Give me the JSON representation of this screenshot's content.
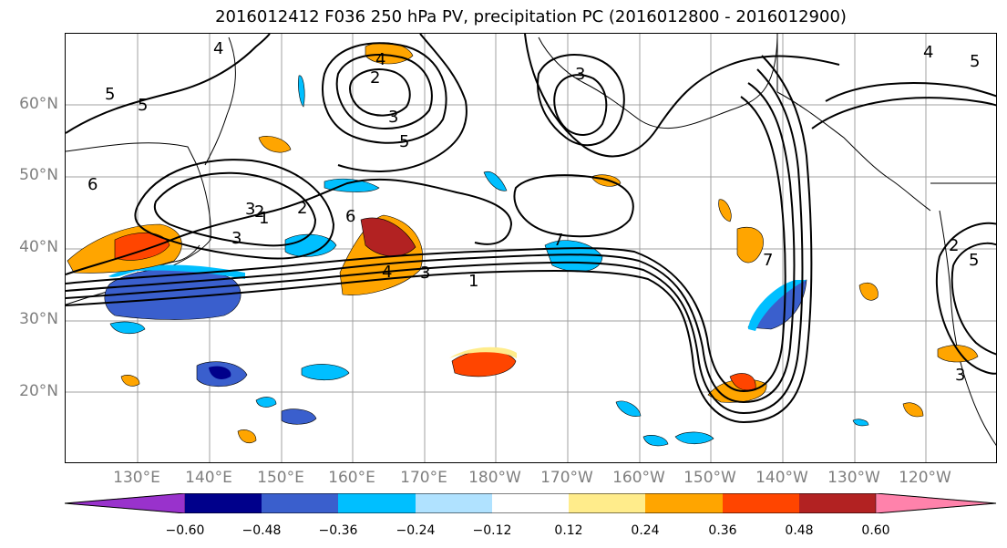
{
  "title": "2016012412 F036 250 hPa PV, precipitation PC (2016012800 - 2016012900)",
  "lat_labels": [
    "60°N",
    "50°N",
    "40°N",
    "30°N",
    "20°N"
  ],
  "lon_labels": [
    "130°E",
    "140°E",
    "150°E",
    "160°E",
    "170°E",
    "180°W",
    "170°W",
    "160°W",
    "150°W",
    "140°W",
    "130°W",
    "120°W"
  ],
  "contour_labels": [
    "4",
    "5",
    "5",
    "6",
    "2",
    "3",
    "1",
    "2",
    "3",
    "4",
    "2",
    "3",
    "5",
    "3",
    "7",
    "4",
    "3",
    "1",
    "6",
    "4",
    "5",
    "7",
    "2",
    "5",
    "3"
  ],
  "colorbar": {
    "ticks": [
      "−0.60",
      "−0.48",
      "−0.36",
      "−0.24",
      "−0.12",
      "0.12",
      "0.24",
      "0.36",
      "0.48",
      "0.60"
    ],
    "colors": [
      "#9932cc",
      "#00008b",
      "#3a5fcd",
      "#00bfff",
      "#b0e2ff",
      "#ffffff",
      "#ffec8b",
      "#ffa500",
      "#ff4500",
      "#b22222",
      "#ff82ab"
    ]
  }
}
